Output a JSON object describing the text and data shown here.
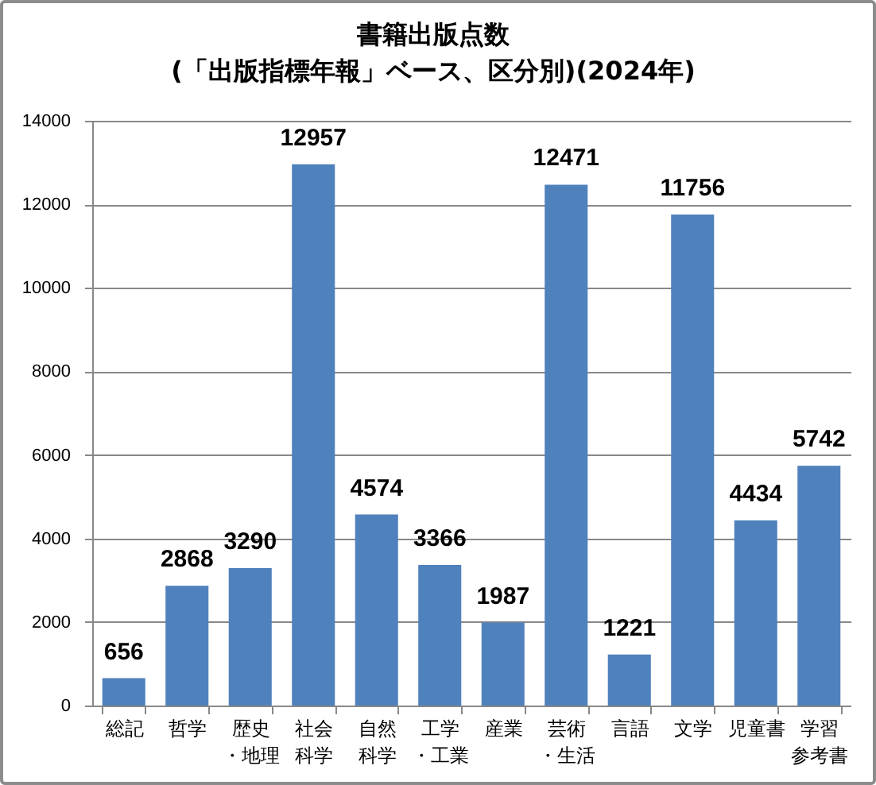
{
  "chart_data": {
    "type": "bar",
    "title": "書籍出版点数",
    "subtitle": "(「出版指標年報」ベース、区分別)(2024年)",
    "categories": [
      "総記",
      "哲学",
      "歴史・地理",
      "社会科学",
      "自然科学",
      "工学・工業",
      "産業",
      "芸術・生活",
      "言語",
      "文学",
      "児童書",
      "学習参考書"
    ],
    "values": [
      656,
      2868,
      3290,
      12957,
      4574,
      3366,
      1987,
      12471,
      1221,
      11756,
      4434,
      5742
    ],
    "color": "#4f81bd",
    "ylim": [
      0,
      14000
    ],
    "yticks": [
      0,
      2000,
      4000,
      6000,
      8000,
      10000,
      12000,
      14000
    ],
    "grid": "y",
    "data_labels": true
  }
}
